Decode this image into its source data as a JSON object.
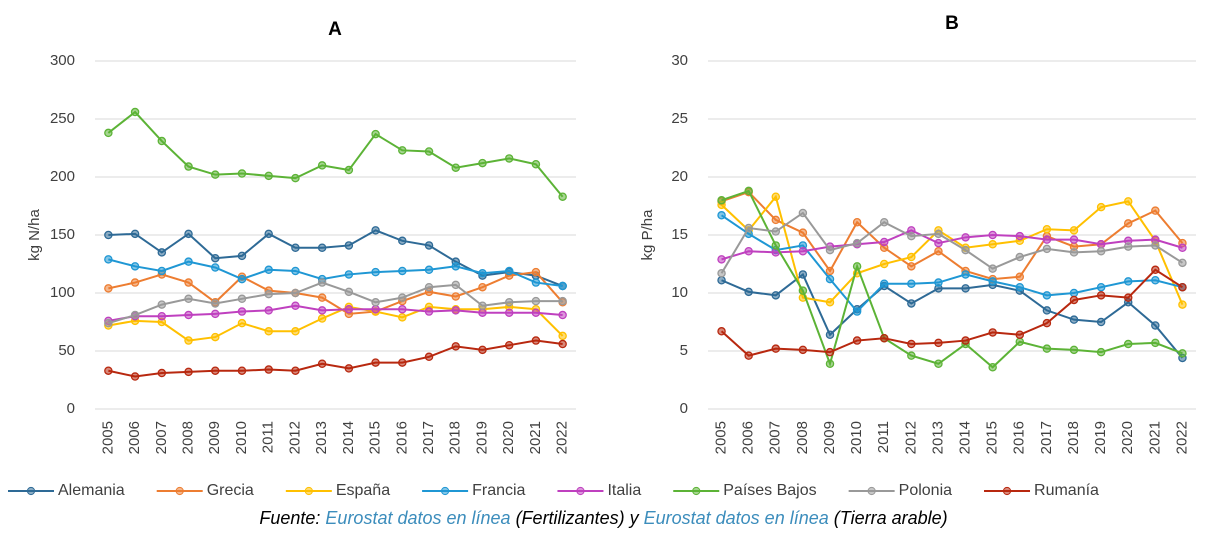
{
  "chart_data": [
    {
      "type": "line",
      "title": "A",
      "ylabel": "kg N/ha",
      "categories": [
        "2005",
        "2006",
        "2007",
        "2008",
        "2009",
        "2010",
        "2011",
        "2012",
        "2013",
        "2014",
        "2015",
        "2016",
        "2017",
        "2018",
        "2019",
        "2020",
        "2021",
        "2022"
      ],
      "ylim": [
        0,
        300
      ],
      "yticks": [
        0,
        50,
        100,
        150,
        200,
        250,
        300
      ],
      "grid": true,
      "series": [
        {
          "name": "Alemania",
          "color": "#2e6a96",
          "values": [
            150,
            151,
            135,
            151,
            130,
            132,
            151,
            139,
            139,
            141,
            154,
            145,
            141,
            127,
            115,
            118,
            115,
            106
          ]
        },
        {
          "name": "Grecia",
          "color": "#ed7d31",
          "values": [
            104,
            109,
            116,
            109,
            92,
            114,
            102,
            100,
            96,
            82,
            84,
            93,
            101,
            97,
            105,
            115,
            118,
            92
          ]
        },
        {
          "name": "España",
          "color": "#ffc000",
          "values": [
            72,
            76,
            75,
            59,
            62,
            74,
            67,
            67,
            78,
            88,
            84,
            79,
            88,
            86,
            86,
            88,
            86,
            63
          ]
        },
        {
          "name": "Francia",
          "color": "#1f97d4",
          "values": [
            129,
            123,
            119,
            127,
            122,
            112,
            120,
            119,
            112,
            116,
            118,
            119,
            120,
            123,
            117,
            119,
            109,
            106
          ]
        },
        {
          "name": "Italia",
          "color": "#bf40bf",
          "values": [
            76,
            80,
            80,
            81,
            82,
            84,
            85,
            89,
            85,
            86,
            86,
            86,
            84,
            85,
            83,
            83,
            83,
            81
          ]
        },
        {
          "name": "Países Bajos",
          "color": "#5cb336",
          "values": [
            238,
            256,
            231,
            209,
            202,
            203,
            201,
            199,
            210,
            206,
            237,
            223,
            222,
            208,
            212,
            216,
            211,
            183
          ]
        },
        {
          "name": "Polonia",
          "color": "#999999",
          "values": [
            74,
            81,
            90,
            95,
            91,
            95,
            99,
            100,
            109,
            101,
            92,
            96,
            105,
            107,
            89,
            92,
            93,
            93
          ]
        },
        {
          "name": "Rumanía",
          "color": "#b8280f",
          "values": [
            33,
            28,
            31,
            32,
            33,
            33,
            34,
            33,
            39,
            35,
            40,
            40,
            45,
            54,
            51,
            55,
            59,
            56
          ]
        }
      ]
    },
    {
      "type": "line",
      "title": "B",
      "ylabel": "kg P/ha",
      "categories": [
        "2005",
        "2006",
        "2007",
        "2008",
        "2009",
        "2010",
        "2011",
        "2012",
        "2013",
        "2014",
        "2015",
        "2016",
        "2017",
        "2018",
        "2019",
        "2020",
        "2021",
        "2022"
      ],
      "ylim": [
        0,
        30
      ],
      "yticks": [
        0,
        5,
        10,
        15,
        20,
        25,
        30
      ],
      "grid": true,
      "series": [
        {
          "name": "Alemania",
          "color": "#2e6a96",
          "values": [
            11.1,
            10.1,
            9.8,
            11.6,
            6.4,
            8.6,
            10.6,
            9.1,
            10.4,
            10.4,
            10.7,
            10.2,
            8.5,
            7.7,
            7.5,
            9.2,
            7.2,
            4.4
          ]
        },
        {
          "name": "Grecia",
          "color": "#ed7d31",
          "values": [
            17.9,
            18.7,
            16.3,
            15.2,
            11.9,
            16.1,
            13.9,
            12.3,
            13.6,
            11.9,
            11.2,
            11.4,
            14.9,
            14,
            14.2,
            16,
            17.1,
            14.3
          ]
        },
        {
          "name": "España",
          "color": "#ffc000",
          "values": [
            17.6,
            15.4,
            18.3,
            9.6,
            9.2,
            11.7,
            12.5,
            13.1,
            15.4,
            13.9,
            14.2,
            14.5,
            15.5,
            15.4,
            17.4,
            17.9,
            14.5,
            9
          ]
        },
        {
          "name": "Francia",
          "color": "#1f97d4",
          "values": [
            16.7,
            15.1,
            13.7,
            14.1,
            11.2,
            8.4,
            10.8,
            10.8,
            10.9,
            11.6,
            11,
            10.5,
            9.8,
            10,
            10.5,
            11,
            11.1,
            10.5
          ]
        },
        {
          "name": "Italia",
          "color": "#bf40bf",
          "values": [
            12.9,
            13.6,
            13.5,
            13.6,
            14,
            14.2,
            14.4,
            15.4,
            14.3,
            14.8,
            15,
            14.9,
            14.6,
            14.6,
            14.2,
            14.5,
            14.6,
            13.9
          ]
        },
        {
          "name": "Países Bajos",
          "color": "#5cb336",
          "values": [
            18,
            18.8,
            14.1,
            10.2,
            3.9,
            12.3,
            6.1,
            4.6,
            3.9,
            5.6,
            3.6,
            5.8,
            5.2,
            5.1,
            4.9,
            5.6,
            5.7,
            4.8
          ]
        },
        {
          "name": "Polonia",
          "color": "#999999",
          "values": [
            11.7,
            15.6,
            15.3,
            16.9,
            13.7,
            14.3,
            16.1,
            14.9,
            15.1,
            13.7,
            12.1,
            13.1,
            13.8,
            13.5,
            13.6,
            14,
            14.1,
            12.6
          ]
        },
        {
          "name": "Rumanía",
          "color": "#b8280f",
          "values": [
            6.7,
            4.6,
            5.2,
            5.1,
            4.9,
            5.9,
            6.1,
            5.6,
            5.7,
            5.9,
            6.6,
            6.4,
            7.4,
            9.4,
            9.8,
            9.6,
            12,
            10.5
          ]
        }
      ]
    }
  ],
  "source": [
    {
      "text": "Fuente:"
    },
    {
      "text": "Eurostat datos en línea",
      "link": true
    },
    {
      "text": "(Fertilizantes) y"
    },
    {
      "text": "Eurostat datos en línea",
      "link": true
    },
    {
      "text": "(Tierra arable)"
    }
  ]
}
